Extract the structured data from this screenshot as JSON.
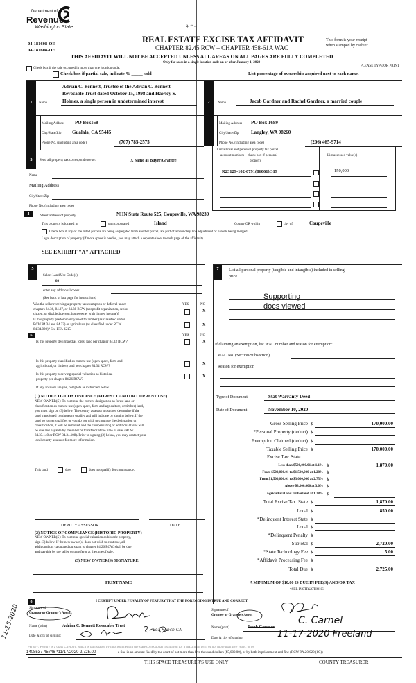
{
  "header": {
    "logo_line1": "Department of",
    "logo_line2": "Revenue",
    "logo_line3": "Washington State",
    "stray_marks": "ą. ~ ..",
    "code1": "04-181608-OE",
    "code2": "04-181608-OE",
    "title": "REAL ESTATE EXCISE TAX AFFIDAVIT",
    "subtitle": "CHAPTER 82.45 RCW – CHAPTER 458-61A WAC",
    "receipt_line1": "This form is your receipt",
    "receipt_line2": "when stamped by cashier",
    "warning": "THIS AFFIDAVIT WILL NOT BE ACCEPTED UNLESS ALL AREAS ON ALL PAGES ARE FULLY COMPLETED",
    "only_for": "Only for sales in a single location code on or after January 1, 2020",
    "please_type": "PLEASE TYPE OR PRINT",
    "multi_location": "Check box if the sale occurred in more than one location code.",
    "partial_sale": "Check box if partial sale, indicate % _____ sold",
    "list_percentage": "List percentage of ownership acquired next to each name."
  },
  "seller": {
    "num": "1",
    "side_label": "SELLER GRANTOR",
    "name_label": "Name",
    "name_line1": "Adrian C. Bennett, Trustee of the Adrian C. Bennett",
    "name_line2": "Revocable Trust dated October 15, 1998 and Hawley S.",
    "name_line3": "Holmes, a single person in undetermined interest",
    "mailing_label": "Mailing Address",
    "mailing": "PO Box168",
    "city_label": "City/State/Zip",
    "city": "Gualala, CA 95445",
    "phone_label": "Phone No. (including area code)",
    "phone": "(707) 785-2575"
  },
  "buyer": {
    "num": "2",
    "side_label": "BUYER GRANTEE",
    "name_label": "Name",
    "name": "Jacob Gardner and Rachel Gardner, a married couple",
    "mailing_label": "Mailing Address",
    "mailing": "PO Box 1689",
    "city_label": "City/State/Zip",
    "city": "Langley, WA 98260",
    "phone_label": "Phone No. (including area code)",
    "phone": "(206) 465-9714"
  },
  "correspondence": {
    "num": "3",
    "label": "Send all property tax correspondence to:",
    "value": "X Same as Buyer/Grantee",
    "name_label": "Name",
    "mailing_label": "Mailing Address",
    "city_label": "City/State/Zip",
    "phone_label": "Phone No. (including area code)"
  },
  "parcels": {
    "header_line1": "List all real and personal property tax parcel",
    "header_line2": "account numbers – check box if personal",
    "header_line3": "property",
    "assessed_header": "List assessed value(s)",
    "rows": [
      {
        "parcel": "R23129-102-0791(86061) 319",
        "personal": false,
        "value": "150,000"
      },
      {
        "parcel": "",
        "personal": false,
        "value": ""
      },
      {
        "parcel": "",
        "personal": false,
        "value": ""
      },
      {
        "parcel": "",
        "personal": false,
        "value": ""
      }
    ]
  },
  "property": {
    "num": "4",
    "street_label": "Street address of property",
    "street": "NHN State Route 525, Coupeville, WA  98239",
    "located_label": "This property is located in",
    "unincorporated": "unincorporated",
    "county": "Island",
    "county_or": "County OR  within",
    "city_of": "city of",
    "city": "Coupeville",
    "segregated": "Check box if any of the listed parcels are being segregated from another parcel, are part of a boundary line adjustment or parcels being merged.",
    "legal_label": "Legal description of property (if more space is needed, you may attach a separate sheet to each page of the affidavit)",
    "legal": "SEE EXHIBIT \"A\" ATTACHED"
  },
  "section5": {
    "num": "5",
    "land_use_label": "Select Land Use Code(s):",
    "land_use": "88",
    "additional_label": "enter any additional codes:",
    "see_back": "(See back of last page for instructions)",
    "yes": "YES",
    "no": "NO",
    "q1": [
      "Was the seller receiving a property tax exemption or deferral under",
      "chapters 84.36, 84.37, or 84.38 RCW (nonprofit organization, senior",
      "citizen, or disabled person, homeowner with limited income)?"
    ],
    "q1_answer": "X",
    "q2": [
      "Is this property predominantly used for timber (as classified under",
      "RCW 84.34 and 84.33) or agriculture (as classified under RCW",
      "84.34.020)? See ETA 3215"
    ],
    "q2_answer": "X"
  },
  "section6": {
    "num": "6",
    "yes": "YES",
    "no": "NO",
    "q1": "Is this property designated as forest land per chapter 84.33 RCW?",
    "q1_answer": "X",
    "q2": [
      "Is this property classified as current use (open space, farm and",
      "agricultural, or timber) land per chapter 84.34 RCW?"
    ],
    "q2_answer": "X",
    "q3": [
      "Is this property receiving special valuation as historical",
      "property per chapter 84.26 RCW?"
    ],
    "q3_answer": "X",
    "if_yes": "If any answers are yes, complete as instructed below",
    "notice1_title": "(1) NOTICE OF CONTINUANCE (FOREST LAND OR CURRENT USE)",
    "notice1": [
      "NEW OWNER(S): To continue the current designation as forest land or",
      "classification as current use (open space, farm and agriculture, or timber) land,",
      "you must sign on (3) below.  The county assessor must then determine if the",
      "land transferred continues to qualify and will indicate by signing below.  If the",
      "land no longer qualifies or you do not wish to continue the designation or",
      "classification, it will be removed and the compensating or additional taxes will",
      "be due and payable by the seller or transferor at the time of sale.  (RCW",
      "84.33.140 or RCW 84.34.108). Prior to signing (3) below, you may contact your",
      "local county assessor for more information."
    ],
    "this_land": "This land",
    "does": "does",
    "does_not": "does not qualify for continuance.",
    "deputy": "DEPUTY ASSESSOR",
    "date": "DATE",
    "notice2_title": "(2) NOTICE OF COMPLIANCE (HISTORIC PROPERTY)",
    "notice2": [
      "NEW OWNER(S):  To continue special valuation as historic property,",
      "sign (3) below.  If the new owner(s) does not wish to continue, all",
      "additional tax calculated pursuant to chapter 84.26 RCW, shall be due",
      "and payable by the seller or transferor at the time of sale."
    ],
    "new_owner_sig": "(3)  NEW OWNER(S) SIGNATURE",
    "print_name": "PRINT NAME"
  },
  "section7": {
    "num": "7",
    "label_line1": "List all personal property (tangible and intangible) included in selling",
    "label_line2": "price.",
    "stamp_line1": "Supporting",
    "stamp_line2": "docs viewed",
    "exemption_label": "If claiming an exemption, list WAC number and reason for exemption:",
    "wac_label": "WAC No. (Section/Subsection)",
    "reason_label": "Reason for exemption",
    "doc_type_label": "Type of Document",
    "doc_type": "Stat Warranty Deed",
    "doc_date_label": "Date of Document",
    "doc_date": "November 10, 2020"
  },
  "tax": {
    "rows": [
      {
        "label": "Gross Selling Price",
        "value": "170,000.00",
        "size": "big"
      },
      {
        "label": "*Personal Property (deduct)",
        "value": "",
        "size": "big"
      },
      {
        "label": "Exemption Claimed (deduct)",
        "value": "",
        "size": "big"
      },
      {
        "label": "Taxable Selling Price",
        "value": "170,000.00",
        "size": "big"
      }
    ],
    "excise_heading": "Excise Tax:  State",
    "brackets": [
      {
        "label": "Less than $500,000.01 at 1.1%",
        "value": "1,870.00"
      },
      {
        "label": "From $500,000.01 to $1,500,000 at 1.28%",
        "value": ""
      },
      {
        "label": "From $1,500,000.01 to $3,000,000 at 2.75%",
        "value": ""
      },
      {
        "label": "Above $3,000,000 at 3.0%",
        "value": ""
      },
      {
        "label": "Agricultural and timberland at 1.28%",
        "value": ""
      }
    ],
    "totals": [
      {
        "label": "Total Excise Tax. State",
        "value": "1,870.00"
      },
      {
        "label": "Local",
        "value": "850.00"
      },
      {
        "label": "*Delinquent Interest  State",
        "value": ""
      },
      {
        "label": "Local",
        "value": ""
      },
      {
        "label": "*Delinquent Penalty",
        "value": ""
      },
      {
        "label": "Subtotal",
        "value": "2,720.00"
      },
      {
        "label": "*State Technology Fee",
        "value": "5.00"
      },
      {
        "label": "*Affidavit Processing Fee",
        "value": ""
      },
      {
        "label": "Total Due",
        "value": "2,725.00"
      }
    ],
    "currency": "$",
    "minimum": "A MINIMUM OF $10.00 IS DUE IN FEE(S) AND/OR TAX",
    "see_instructions": "*SEE INSTRUCTIONS"
  },
  "section8": {
    "num": "8",
    "certify": "I CERTIFY UNDER PENALTY OF PERJURY THAT THE FOREGOING IS TRUE AND CORRECT.",
    "grantor_sig_label1": "Signature of",
    "grantor_sig_label2": "Grantor or Grantor's Agent",
    "grantor_name_label": "Name (print)",
    "grantor_name": "Adrian C. Bennett Revocable Trust",
    "grantor_date_label": "Date & city of signing:",
    "grantor_date_hand": "Sea Ranch CA",
    "grantee_sig_label1": "Signature of",
    "grantee_sig_label2": "Grantee or Grantee's Agent",
    "grantee_name_label": "Name (print)",
    "grantee_name": "Jacob Gardner",
    "grantee_name_hand": "C. Carnel",
    "grantee_date_label": "Date & city of signing:",
    "grantee_date_hand": "11-17-2020 Freeland",
    "margin_date_hand": "11-15-2020",
    "perjury": "Perjury: Perjury is a class C felony, which is punishable by imprisonment in the state correctional institution for a maximum term of not more than five years, or by",
    "perjury2": "a fine in an amount fixed by the court of not more than five thousand dollars ($5,000.00), or by both imprisonment and fine (RCW 9A.20.020 (1C))",
    "receipt_stamp": "1408537 45746 *11/17/2020 2,725.00",
    "this_space": "THIS SPACE   TREASURER'S USE ONLY",
    "county_treasurer": "COUNTY TREASURER"
  },
  "colors": {
    "ink": "#111111",
    "fold_line": "#555555",
    "section_badge": "#111111"
  }
}
